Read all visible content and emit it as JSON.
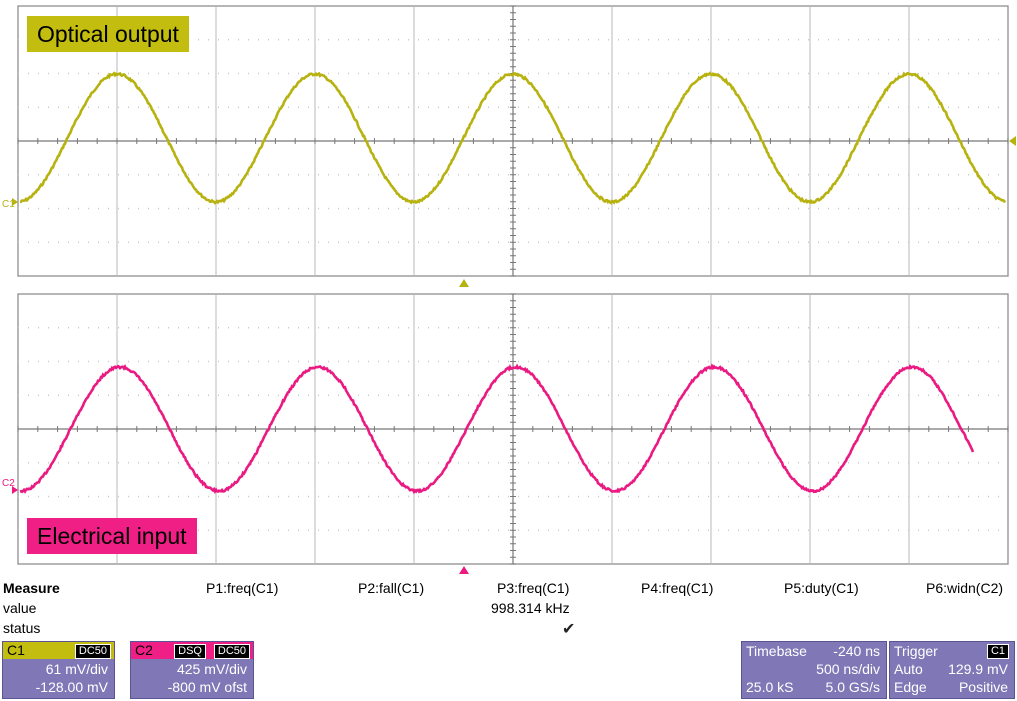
{
  "panels": {
    "top": {
      "label": "Optical output",
      "channel_marker": "C1",
      "color": "#b7b20f"
    },
    "bottom": {
      "label": "Electrical input",
      "channel_marker": "C2",
      "color": "#ea1a82"
    }
  },
  "measure": {
    "title": "Measure",
    "row_value": "value",
    "row_status": "status",
    "params": [
      {
        "name": "P1:freq(C1)",
        "value": ""
      },
      {
        "name": "P2:fall(C1)",
        "value": ""
      },
      {
        "name": "P3:freq(C1)",
        "value": "998.314 kHz",
        "status": "check"
      },
      {
        "name": "P4:freq(C1)",
        "value": ""
      },
      {
        "name": "P5:duty(C1)",
        "value": ""
      },
      {
        "name": "P6:widn(C2)",
        "value": ""
      }
    ]
  },
  "channels": {
    "c1": {
      "name": "C1",
      "coupling": "DC50",
      "scale": "61 mV/div",
      "offset": "-128.00 mV",
      "color": "#c2bd0f"
    },
    "c2": {
      "name": "C2",
      "tag1": "DSQ",
      "coupling": "DC50",
      "scale": "425 mV/div",
      "offset": "-800 mV ofst",
      "color": "#ef1f85"
    }
  },
  "timebase": {
    "title": "Timebase",
    "delay": "-240 ns",
    "scale": "500 ns/div",
    "samples": "25.0 kS",
    "rate": "5.0 GS/s"
  },
  "trigger": {
    "title": "Trigger",
    "source": "C1",
    "mode": "Auto",
    "level": "129.9 mV",
    "type": "Edge",
    "slope": "Positive"
  }
}
